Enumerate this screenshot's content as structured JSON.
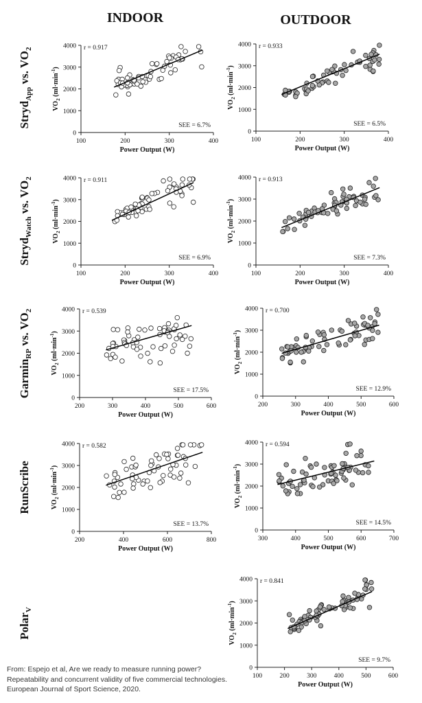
{
  "column_headers": [
    "INDOOR",
    "OUTDOOR"
  ],
  "rows": [
    {
      "label_main": "Stryd",
      "label_sub": "App",
      "label_rest": " vs. VO",
      "label_sub2": "2"
    },
    {
      "label_main": "Stryd",
      "label_sub": "Watch",
      "label_rest": " vs. VO",
      "label_sub2": "2"
    },
    {
      "label_main": "Garmin",
      "label_sub": "RP",
      "label_rest": " vs. VO",
      "label_sub2": "2"
    },
    {
      "label_main": "RunScribe",
      "label_sub": "",
      "label_rest": "",
      "label_sub2": ""
    },
    {
      "label_main": "Polar",
      "label_sub": "V",
      "label_rest": "",
      "label_sub2": ""
    }
  ],
  "axis_labels": {
    "x": "Power Output (W)",
    "x_polar": "Power  Output (W)",
    "y_prefix": "VO",
    "y_sub": "2",
    "y_mid": " (ml·min",
    "y_sup": "-1",
    "y_suffix": ")"
  },
  "source": "From: Espejo et al, Are we ready to measure running power? Repeatability and concurrent validity of five commercial technologies. European Journal of Sport Science, 2020.",
  "colors": {
    "indoor_fill": "#ffffff",
    "outdoor_fill": "#a8a8a8",
    "stroke": "#222222"
  },
  "chart_data": [
    {
      "type": "scatter",
      "title": "Stryd App vs. VO2 — Indoor",
      "xlabel": "Power Output (W)",
      "ylabel": "VO2 (ml·min-1)",
      "xlim": [
        100,
        400
      ],
      "ylim": [
        0,
        4000
      ],
      "xticks": [
        100,
        200,
        300,
        400
      ],
      "yticks": [
        0,
        1000,
        2000,
        3000,
        4000
      ],
      "r_label": "r = 0.917",
      "see_label": "SEE = 6.7%",
      "marker": "open",
      "n_points": 64,
      "fit": [
        [
          175,
          2080
        ],
        [
          375,
          3780
        ]
      ]
    },
    {
      "type": "scatter",
      "title": "Stryd App vs. VO2 — Outdoor",
      "xlabel": "Power Output (W)",
      "ylabel": "VO2 (ml·min-1)",
      "xlim": [
        100,
        400
      ],
      "ylim": [
        0,
        4000
      ],
      "xticks": [
        100,
        200,
        300,
        400
      ],
      "yticks": [
        0,
        1000,
        2000,
        3000,
        4000
      ],
      "r_label": "r = 0.933",
      "see_label": "SEE = 6.5%",
      "marker": "filled",
      "n_points": 64,
      "fit": [
        [
          158,
          1680
        ],
        [
          380,
          3530
        ]
      ]
    },
    {
      "type": "scatter",
      "title": "Stryd Watch vs. VO2 — Indoor",
      "xlabel": "Power Output (W)",
      "ylabel": "VO2 (ml·min-1)",
      "xlim": [
        100,
        400
      ],
      "ylim": [
        0,
        4000
      ],
      "xticks": [
        100,
        200,
        300,
        400
      ],
      "yticks": [
        0,
        1000,
        2000,
        3000,
        4000
      ],
      "r_label": "r = 0.911",
      "see_label": "SEE = 6.9%",
      "marker": "open",
      "n_points": 64,
      "fit": [
        [
          170,
          2050
        ],
        [
          355,
          3780
        ]
      ]
    },
    {
      "type": "scatter",
      "title": "Stryd Watch vs. VO2 — Outdoor",
      "xlabel": "Power Output (W)",
      "ylabel": "VO2 (ml·min-1)",
      "xlim": [
        100,
        400
      ],
      "ylim": [
        0,
        4000
      ],
      "xticks": [
        100,
        200,
        300,
        400
      ],
      "yticks": [
        0,
        1000,
        2000,
        3000,
        4000
      ],
      "r_label": "r = 0.913",
      "see_label": "SEE = 7.3%",
      "marker": "filled",
      "n_points": 64,
      "fit": [
        [
          158,
          1700
        ],
        [
          380,
          3520
        ]
      ]
    },
    {
      "type": "scatter",
      "title": "Garmin RP vs. VO2 — Indoor",
      "xlabel": "Power Output  (W)",
      "ylabel": "VO2 (ml·min-1)",
      "xlim": [
        200,
        600
      ],
      "ylim": [
        0,
        4000
      ],
      "xticks": [
        200,
        300,
        400,
        500,
        600
      ],
      "yticks": [
        0,
        1000,
        2000,
        3000,
        4000
      ],
      "r_label": "r = 0.539",
      "see_label": "SEE = 17.5%",
      "marker": "open",
      "n_points": 64,
      "fit": [
        [
          280,
          2150
        ],
        [
          540,
          3250
        ]
      ]
    },
    {
      "type": "scatter",
      "title": "Garmin RP vs. VO2 — Outdoor",
      "xlabel": "Power Output (W)",
      "ylabel": "VO2 (ml·min-1)",
      "xlim": [
        200,
        600
      ],
      "ylim": [
        0,
        4000
      ],
      "xticks": [
        200,
        300,
        400,
        500,
        600
      ],
      "yticks": [
        0,
        1000,
        2000,
        3000,
        4000
      ],
      "r_label": "r = 0.700",
      "see_label": "SEE = 12.9%",
      "marker": "filled",
      "n_points": 72,
      "fit": [
        [
          258,
          1950
        ],
        [
          555,
          3230
        ]
      ]
    },
    {
      "type": "scatter",
      "title": "RunScribe — Indoor",
      "xlabel": "Power Output (W)",
      "ylabel": "VO2 (ml·min-1)",
      "xlim": [
        200,
        800
      ],
      "ylim": [
        0,
        4000
      ],
      "xticks": [
        200,
        400,
        600,
        800
      ],
      "yticks": [
        0,
        1000,
        2000,
        3000,
        4000
      ],
      "r_label": "r = 0.582",
      "see_label": "SEE = 13.7%",
      "marker": "open",
      "n_points": 64,
      "fit": [
        [
          320,
          2100
        ],
        [
          760,
          3600
        ]
      ]
    },
    {
      "type": "scatter",
      "title": "RunScribe — Outdoor",
      "xlabel": "Power Output (W)",
      "ylabel": "VO2 (ml·min-1)",
      "xlim": [
        300,
        700
      ],
      "ylim": [
        0,
        4000
      ],
      "xticks": [
        300,
        400,
        500,
        600,
        700
      ],
      "yticks": [
        0,
        1000,
        2000,
        3000,
        4000
      ],
      "r_label": "r = 0.594",
      "see_label": "SEE = 14.5%",
      "marker": "filled",
      "n_points": 72,
      "fit": [
        [
          345,
          2070
        ],
        [
          640,
          3140
        ]
      ]
    },
    {
      "type": "scatter",
      "title": "Polar V — Outdoor",
      "xlabel": "Power  Output (W)",
      "ylabel": "VO2 (ml·min-1)",
      "xlim": [
        100,
        600
      ],
      "ylim": [
        0,
        4000
      ],
      "xticks": [
        100,
        200,
        300,
        400,
        500,
        600
      ],
      "yticks": [
        0,
        1000,
        2000,
        3000,
        4000
      ],
      "r_label": "r = 0.841",
      "see_label": "SEE = 9.7%",
      "marker": "filled",
      "n_points": 72,
      "fit": [
        [
          212,
          1750
        ],
        [
          522,
          3420
        ]
      ]
    }
  ]
}
